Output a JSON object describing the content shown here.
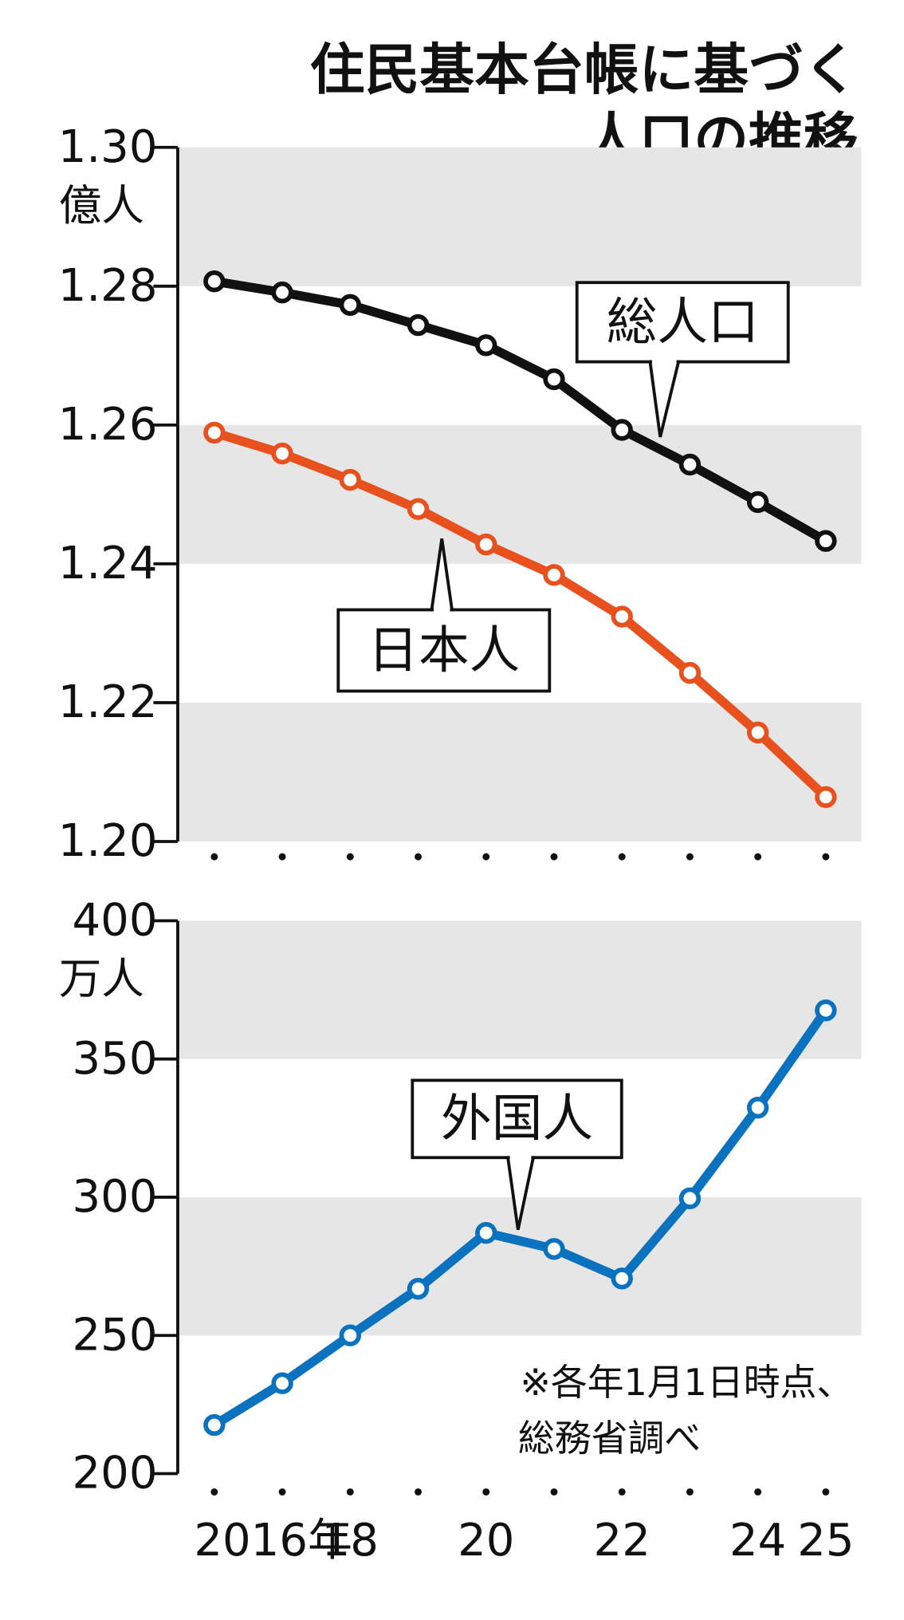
{
  "chart_data": [
    {
      "type": "line",
      "title_lines": [
        "住民基本台帳に基づく",
        "人口の推移"
      ],
      "y_unit": "億人",
      "categories": [
        null,
        null,
        null,
        null,
        null,
        null,
        null,
        null,
        null,
        null
      ],
      "series": [
        {
          "name": "総人口",
          "color": "#111111",
          "values": [
            1.2807,
            1.2791,
            1.2773,
            1.2744,
            1.2715,
            1.2666,
            1.2593,
            1.2543,
            1.2489,
            1.2433
          ]
        },
        {
          "name": "日本人",
          "color": "#e8501e",
          "values": [
            1.2589,
            1.2559,
            1.2521,
            1.2479,
            1.2428,
            1.2384,
            1.2324,
            1.2243,
            1.2157,
            1.2064
          ]
        }
      ],
      "ylim": [
        1.2,
        1.3
      ],
      "yticks": [
        {
          "value": 1.2,
          "label": "1.20"
        },
        1.22,
        1.24,
        1.26,
        1.28,
        {
          "value": 1.3,
          "label": "1.30"
        }
      ],
      "grid": true
    },
    {
      "type": "line",
      "y_unit": "万人",
      "categories": [
        "2016年",
        null,
        "18",
        null,
        "20",
        null,
        "22",
        null,
        "24",
        "25"
      ],
      "series": [
        {
          "name": "外国人",
          "color": "#0a72bf",
          "values": [
            217.6,
            232.7,
            250.0,
            266.9,
            287.1,
            281.3,
            270.6,
            299.6,
            332.4,
            367.6
          ]
        }
      ],
      "ylim": [
        200,
        400
      ],
      "yticks": [
        200,
        250,
        300,
        350,
        400
      ],
      "note_lines": [
        "※各年1月1日時点、",
        "総務省調べ"
      ],
      "grid": true
    }
  ]
}
